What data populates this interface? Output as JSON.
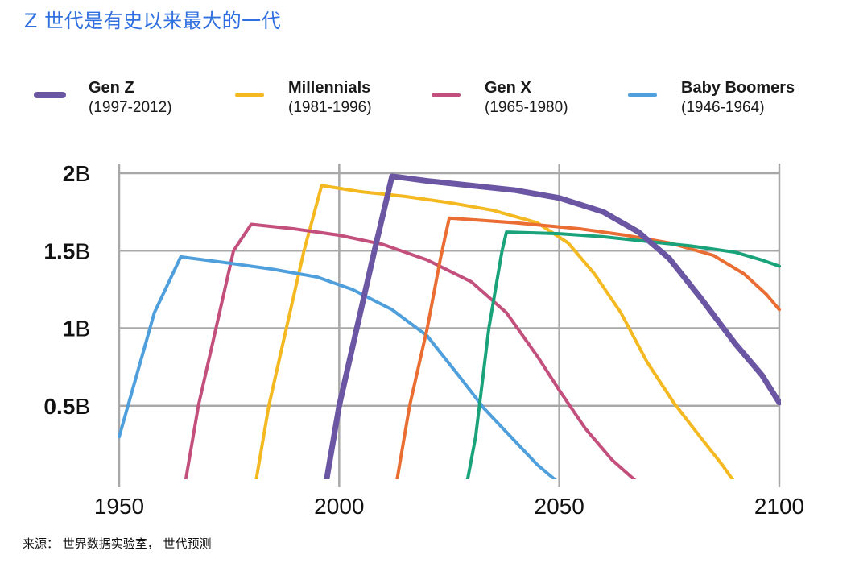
{
  "page": {
    "title": "Z 世代是有史以来最大的一代",
    "source": "来源： 世界数据实验室， 世代预测"
  },
  "colors": {
    "genz": "#6b56a3",
    "millennials": "#f4b920",
    "genx": "#c34f7d",
    "boomers": "#4f9fdc",
    "next1": "#ea6e34",
    "next2": "#1aa37b",
    "grid": "#a8a8a8"
  },
  "chart_data": {
    "type": "line",
    "title": "",
    "xlabel": "",
    "ylabel": "",
    "xlim": [
      1950,
      2100
    ],
    "ylim": [
      0,
      2
    ],
    "x_ticks": [
      "1950",
      "2000",
      "2050",
      "2100"
    ],
    "y_ticks": [
      {
        "value": 0.5,
        "num": "0.5",
        "unit": "B"
      },
      {
        "value": 1,
        "num": "1",
        "unit": "B"
      },
      {
        "value": 1.5,
        "num": "1.5",
        "unit": "B"
      },
      {
        "value": 2,
        "num": "2",
        "unit": "B"
      }
    ],
    "legend": [
      {
        "name": "Gen Z",
        "range": "(1997-2012)",
        "series": 0
      },
      {
        "name": "Millennials",
        "range": "(1981-1996)",
        "series": 1
      },
      {
        "name": "Gen X",
        "range": "(1965-1980)",
        "series": 2
      },
      {
        "name": "Baby Boomers",
        "range": "(1946-1964)",
        "series": 3
      }
    ],
    "series": [
      {
        "name": "Gen Z",
        "color": "#6b56a3",
        "width": 7,
        "points": [
          [
            1997,
            0.0
          ],
          [
            2000,
            0.5
          ],
          [
            2004,
            1.0
          ],
          [
            2008,
            1.5
          ],
          [
            2012,
            1.98
          ],
          [
            2020,
            1.95
          ],
          [
            2030,
            1.92
          ],
          [
            2040,
            1.89
          ],
          [
            2050,
            1.84
          ],
          [
            2060,
            1.75
          ],
          [
            2068,
            1.62
          ],
          [
            2075,
            1.45
          ],
          [
            2082,
            1.2
          ],
          [
            2090,
            0.9
          ],
          [
            2096,
            0.7
          ],
          [
            2100,
            0.52
          ]
        ]
      },
      {
        "name": "Millennials",
        "color": "#f4b920",
        "width": 4,
        "points": [
          [
            1981,
            0.0
          ],
          [
            1984,
            0.5
          ],
          [
            1988,
            1.0
          ],
          [
            1992,
            1.5
          ],
          [
            1996,
            1.92
          ],
          [
            2005,
            1.88
          ],
          [
            2015,
            1.85
          ],
          [
            2025,
            1.81
          ],
          [
            2035,
            1.76
          ],
          [
            2045,
            1.68
          ],
          [
            2052,
            1.55
          ],
          [
            2058,
            1.35
          ],
          [
            2064,
            1.1
          ],
          [
            2070,
            0.78
          ],
          [
            2076,
            0.52
          ],
          [
            2082,
            0.3
          ],
          [
            2087,
            0.12
          ],
          [
            2090,
            0.0
          ]
        ]
      },
      {
        "name": "Gen X",
        "color": "#c34f7d",
        "width": 4,
        "points": [
          [
            1965,
            0.0
          ],
          [
            1968,
            0.5
          ],
          [
            1972,
            1.0
          ],
          [
            1976,
            1.5
          ],
          [
            1980,
            1.67
          ],
          [
            1990,
            1.64
          ],
          [
            2000,
            1.6
          ],
          [
            2010,
            1.54
          ],
          [
            2020,
            1.44
          ],
          [
            2030,
            1.3
          ],
          [
            2038,
            1.1
          ],
          [
            2045,
            0.82
          ],
          [
            2050,
            0.6
          ],
          [
            2056,
            0.35
          ],
          [
            2062,
            0.15
          ],
          [
            2068,
            0.0
          ]
        ]
      },
      {
        "name": "Baby Boomers",
        "color": "#4f9fdc",
        "width": 4,
        "points": [
          [
            1950,
            0.3
          ],
          [
            1954,
            0.7
          ],
          [
            1958,
            1.1
          ],
          [
            1964,
            1.46
          ],
          [
            1975,
            1.42
          ],
          [
            1985,
            1.38
          ],
          [
            1995,
            1.33
          ],
          [
            2003,
            1.25
          ],
          [
            2012,
            1.12
          ],
          [
            2020,
            0.95
          ],
          [
            2027,
            0.7
          ],
          [
            2033,
            0.48
          ],
          [
            2039,
            0.3
          ],
          [
            2045,
            0.12
          ],
          [
            2050,
            0.0
          ]
        ]
      },
      {
        "name": "",
        "color": "#ea6e34",
        "width": 4,
        "points": [
          [
            2013,
            0.0
          ],
          [
            2016,
            0.5
          ],
          [
            2020,
            1.0
          ],
          [
            2023,
            1.45
          ],
          [
            2025,
            1.71
          ],
          [
            2040,
            1.68
          ],
          [
            2055,
            1.64
          ],
          [
            2065,
            1.6
          ],
          [
            2075,
            1.55
          ],
          [
            2085,
            1.47
          ],
          [
            2092,
            1.35
          ],
          [
            2097,
            1.22
          ],
          [
            2100,
            1.12
          ]
        ]
      },
      {
        "name": "",
        "color": "#1aa37b",
        "width": 4,
        "points": [
          [
            2029,
            0.0
          ],
          [
            2031,
            0.3
          ],
          [
            2034,
            1.0
          ],
          [
            2037,
            1.5
          ],
          [
            2038,
            1.62
          ],
          [
            2050,
            1.61
          ],
          [
            2060,
            1.59
          ],
          [
            2070,
            1.56
          ],
          [
            2080,
            1.53
          ],
          [
            2090,
            1.49
          ],
          [
            2096,
            1.44
          ],
          [
            2100,
            1.4
          ]
        ]
      }
    ]
  }
}
